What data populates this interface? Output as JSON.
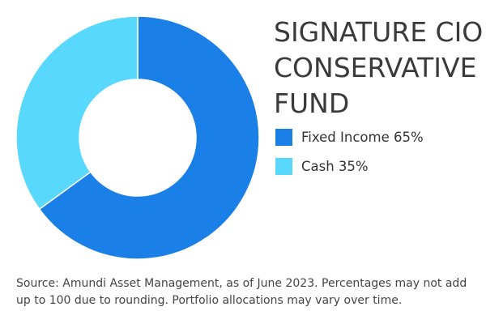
{
  "chart_data": {
    "type": "pie",
    "variant": "donut",
    "title_lines": [
      "SIGNATURE CIO",
      "CONSERVATIVE",
      "FUND"
    ],
    "slices": [
      {
        "label": "Fixed Income 65%",
        "value": 65,
        "color": "#1a7fe6"
      },
      {
        "label": "Cash 35%",
        "value": 35,
        "color": "#57d8fc"
      }
    ],
    "legend_position": "right"
  },
  "source_note": "Source: Amundi Asset Management, as of June 2023. Percentages may not add up to 100 due to rounding. Portfolio allocations may vary over time."
}
